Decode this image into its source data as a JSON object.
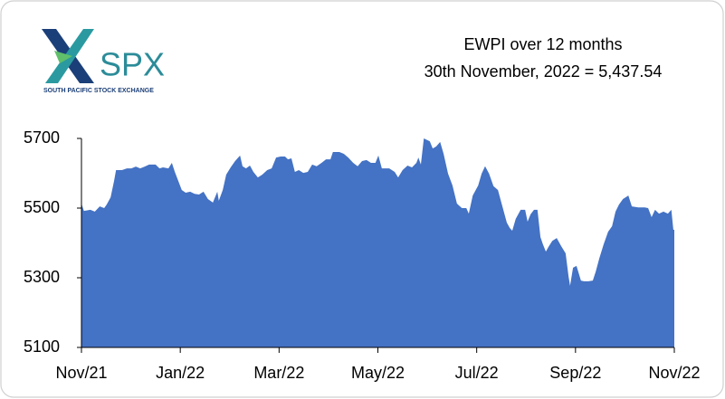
{
  "logo": {
    "text": "SPX",
    "subtitle": "SOUTH PACIFIC STOCK EXCHANGE"
  },
  "chart_data": {
    "type": "area",
    "title": "EWPI over 12 months",
    "subtitle": "30th November, 2022 = 5,437.54",
    "color": "#4472c4",
    "x": [
      0,
      0.05,
      0.18,
      0.27,
      0.37,
      0.46,
      0.51,
      0.59,
      0.66,
      0.7,
      0.82,
      0.92,
      1.01,
      1.1,
      1.19,
      1.28,
      1.37,
      1.5,
      1.58,
      1.65,
      1.76,
      1.83,
      1.89,
      1.96,
      2.03,
      2.11,
      2.2,
      2.29,
      2.38,
      2.47,
      2.56,
      2.66,
      2.75,
      2.78,
      2.86,
      2.93,
      3.02,
      3.11,
      3.21,
      3.26,
      3.33,
      3.41,
      3.48,
      3.57,
      3.66,
      3.76,
      3.85,
      3.94,
      4.03,
      4.12,
      4.18,
      4.25,
      4.32,
      4.4,
      4.49,
      4.58,
      4.67,
      4.76,
      4.86,
      4.95,
      5.04,
      5.09,
      5.22,
      5.31,
      5.4,
      5.5,
      5.59,
      5.68,
      5.77,
      5.86,
      5.95,
      6.01,
      6.08,
      6.23,
      6.34,
      6.41,
      6.5,
      6.6,
      6.69,
      6.78,
      6.82,
      6.87,
      6.93,
      7.05,
      7.11,
      7.18,
      7.26,
      7.33,
      7.42,
      7.51,
      7.6,
      7.7,
      7.79,
      7.84,
      7.92,
      8.03,
      8.1,
      8.17,
      8.25,
      8.34,
      8.43,
      8.52,
      8.61,
      8.67,
      8.72,
      8.79,
      8.89,
      8.98,
      9.03,
      9.09,
      9.16,
      9.23,
      9.29,
      9.34,
      9.4,
      9.45,
      9.53,
      9.62,
      9.71,
      9.8,
      9.86,
      9.89,
      9.95,
      10.02,
      10.11,
      10.17,
      10.26,
      10.35,
      10.41,
      10.48,
      10.57,
      10.66,
      10.74,
      10.81,
      10.88,
      10.96,
      11.07,
      11.14,
      11.27,
      11.4,
      11.47,
      11.54,
      11.61,
      11.69,
      11.78,
      11.87,
      11.94,
      11.98,
      12
    ],
    "values": [
      5513,
      5492,
      5495,
      5490,
      5505,
      5500,
      5510,
      5531,
      5578,
      5609,
      5609,
      5614,
      5614,
      5619,
      5614,
      5619,
      5625,
      5625,
      5614,
      5617,
      5614,
      5630,
      5604,
      5578,
      5552,
      5544,
      5547,
      5541,
      5539,
      5547,
      5526,
      5516,
      5547,
      5521,
      5552,
      5596,
      5617,
      5635,
      5651,
      5620,
      5614,
      5622,
      5604,
      5588,
      5596,
      5609,
      5614,
      5645,
      5648,
      5648,
      5640,
      5643,
      5604,
      5609,
      5601,
      5604,
      5625,
      5620,
      5630,
      5640,
      5640,
      5661,
      5661,
      5656,
      5645,
      5630,
      5620,
      5635,
      5638,
      5630,
      5630,
      5651,
      5614,
      5614,
      5604,
      5588,
      5609,
      5622,
      5617,
      5630,
      5645,
      5625,
      5700,
      5692,
      5671,
      5677,
      5690,
      5656,
      5599,
      5565,
      5513,
      5500,
      5500,
      5484,
      5536,
      5565,
      5599,
      5620,
      5599,
      5563,
      5552,
      5505,
      5458,
      5443,
      5435,
      5469,
      5495,
      5495,
      5461,
      5482,
      5495,
      5495,
      5417,
      5396,
      5375,
      5388,
      5406,
      5414,
      5391,
      5370,
      5303,
      5277,
      5329,
      5334,
      5292,
      5290,
      5290,
      5292,
      5318,
      5355,
      5396,
      5432,
      5448,
      5490,
      5510,
      5526,
      5536,
      5505,
      5502,
      5502,
      5500,
      5474,
      5495,
      5484,
      5490,
      5484,
      5495,
      5438,
      5437.54
    ],
    "xlim": [
      0,
      12
    ],
    "xticks": [
      {
        "value": 0,
        "label": "Nov/21"
      },
      {
        "value": 2,
        "label": "Jan/22"
      },
      {
        "value": 4,
        "label": "Mar/22"
      },
      {
        "value": 6,
        "label": "May/22"
      },
      {
        "value": 8,
        "label": "Jul/22"
      },
      {
        "value": 10,
        "label": "Sep/22"
      },
      {
        "value": 12,
        "label": "Nov/22"
      }
    ],
    "ylim": [
      5100,
      5700
    ],
    "yticks": [
      5100,
      5300,
      5500,
      5700
    ],
    "grid": false
  }
}
